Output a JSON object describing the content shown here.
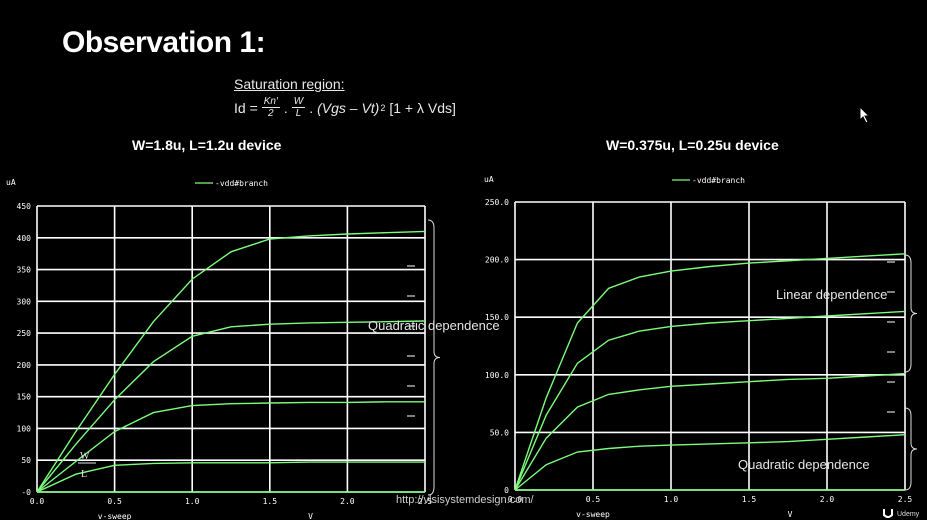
{
  "slide": {
    "title": "Observation 1:",
    "formula_header": "Saturation region:",
    "formula": {
      "lhs": "Id =",
      "frac1_num": "Kn′",
      "frac1_den": "2",
      "dot1": ".",
      "frac2_num": "W",
      "frac2_den": "L",
      "dot2": ".",
      "term": "(Vgs – Vt)",
      "sup": "2",
      "tail": "[1 + λ Vds]"
    },
    "left_device_title": "W=1.8u, L=1.2u device",
    "right_device_title": "W=0.375u, L=0.25u device",
    "url": "http://vlsisystemdesign.com/",
    "udemy": "Udemy",
    "annotations": {
      "left_quadratic": "Quadratic dependence",
      "left_w": "W",
      "left_l": "L",
      "right_linear": "Linear dependence",
      "right_quadratic": "Quadratic dependence"
    }
  },
  "colors": {
    "curve": "#7CFC7C",
    "grid": "#ffffff",
    "bg": "#000000",
    "text": "#ffffff"
  },
  "chart_data": [
    {
      "type": "line",
      "ylabel": "uA",
      "xlabel": "v-sweep",
      "xunit": "V",
      "legend": "-vdd#branch",
      "xlim": [
        0,
        2.5
      ],
      "ylim": [
        0,
        450
      ],
      "xticks": [
        "0.0",
        "0.5",
        "1.0",
        "1.5",
        "2.0",
        "2.5"
      ],
      "yticks": [
        "-0",
        "50",
        "100",
        "150",
        "200",
        "250",
        "300",
        "350",
        "400",
        "450"
      ],
      "series": [
        {
          "x": [
            0,
            0.25,
            0.5,
            0.75,
            1.0,
            1.25,
            1.5,
            1.75,
            2.0,
            2.25,
            2.5
          ],
          "y": [
            0,
            95,
            185,
            268,
            335,
            378,
            398,
            403,
            406,
            408,
            410
          ]
        },
        {
          "x": [
            0,
            0.25,
            0.5,
            0.75,
            1.0,
            1.25,
            1.5,
            1.75,
            2.0,
            2.25,
            2.5
          ],
          "y": [
            0,
            75,
            145,
            205,
            245,
            260,
            264,
            266,
            267,
            268,
            269
          ]
        },
        {
          "x": [
            0,
            0.25,
            0.5,
            0.75,
            1.0,
            1.25,
            1.5,
            1.75,
            2.0,
            2.25,
            2.5
          ],
          "y": [
            0,
            48,
            95,
            125,
            136,
            139,
            140,
            141,
            141,
            142,
            142
          ]
        },
        {
          "x": [
            0,
            0.25,
            0.5,
            0.75,
            1.0,
            1.25,
            1.5,
            1.75,
            2.0,
            2.25,
            2.5
          ],
          "y": [
            0,
            28,
            42,
            45,
            46,
            46,
            46,
            47,
            47,
            47,
            47
          ]
        },
        {
          "x": [
            0,
            0.5,
            1.0,
            1.5,
            2.0,
            2.5
          ],
          "y": [
            0,
            0,
            0,
            0,
            0,
            0
          ]
        }
      ]
    },
    {
      "type": "line",
      "ylabel": "uA",
      "xlabel": "v-sweep",
      "xunit": "V",
      "legend": "-vdd#branch",
      "xlim": [
        0,
        2.5
      ],
      "ylim": [
        0,
        250
      ],
      "xticks": [
        "0.0",
        "0.5",
        "1.0",
        "1.5",
        "2.0",
        "2.5"
      ],
      "yticks": [
        "0",
        "50.0",
        "100.0",
        "150.0",
        "200.0",
        "250.0"
      ],
      "series": [
        {
          "x": [
            0,
            0.2,
            0.4,
            0.6,
            0.8,
            1.0,
            1.25,
            1.5,
            1.75,
            2.0,
            2.25,
            2.5
          ],
          "y": [
            0,
            80,
            145,
            175,
            185,
            190,
            194,
            197,
            199,
            201,
            203,
            205
          ]
        },
        {
          "x": [
            0,
            0.2,
            0.4,
            0.6,
            0.8,
            1.0,
            1.25,
            1.5,
            1.75,
            2.0,
            2.25,
            2.5
          ],
          "y": [
            0,
            65,
            110,
            130,
            138,
            142,
            145,
            147,
            149,
            151,
            153,
            155
          ]
        },
        {
          "x": [
            0,
            0.2,
            0.4,
            0.6,
            0.8,
            1.0,
            1.25,
            1.5,
            1.75,
            2.0,
            2.25,
            2.5
          ],
          "y": [
            0,
            45,
            72,
            83,
            87,
            90,
            92,
            94,
            96,
            97,
            99,
            101
          ]
        },
        {
          "x": [
            0,
            0.2,
            0.4,
            0.6,
            0.8,
            1.0,
            1.25,
            1.5,
            1.75,
            2.0,
            2.25,
            2.5
          ],
          "y": [
            0,
            22,
            33,
            36,
            38,
            39,
            40,
            41,
            42,
            44,
            46,
            48
          ]
        },
        {
          "x": [
            0,
            0.5,
            1.0,
            1.5,
            2.0,
            2.5
          ],
          "y": [
            0,
            0,
            0,
            0,
            0,
            0
          ]
        }
      ]
    }
  ]
}
